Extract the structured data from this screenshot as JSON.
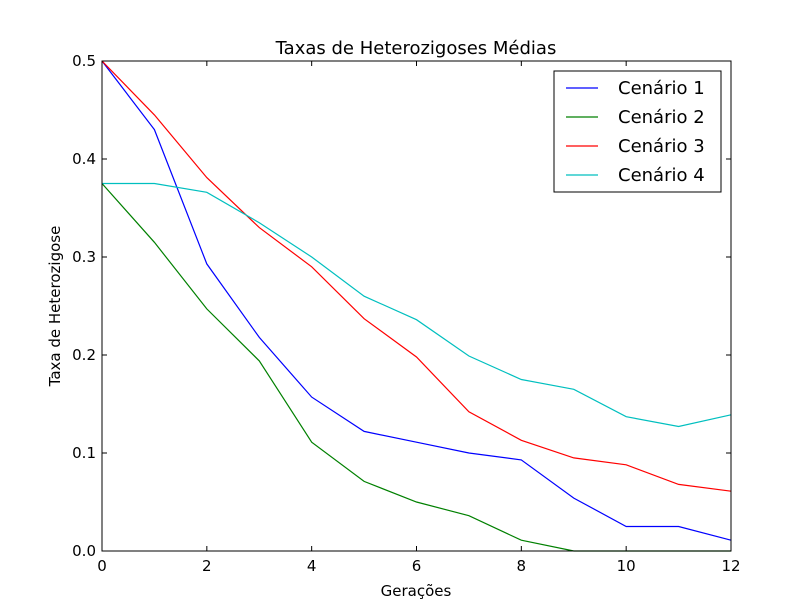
{
  "chart_data": {
    "type": "line",
    "title": "Taxas de Heterozigoses Médias",
    "xlabel": "Gerações",
    "ylabel": "Taxa de Heterozigose",
    "xlim": [
      0,
      12
    ],
    "ylim": [
      0,
      0.5
    ],
    "xticks": [
      0,
      2,
      4,
      6,
      8,
      10,
      12
    ],
    "yticks": [
      0.0,
      0.1,
      0.2,
      0.3,
      0.4,
      0.5
    ],
    "xtick_labels": [
      "0",
      "2",
      "4",
      "6",
      "8",
      "10",
      "12"
    ],
    "ytick_labels": [
      "0.0",
      "0.1",
      "0.2",
      "0.3",
      "0.4",
      "0.5"
    ],
    "legend_position": "top-right",
    "grid": false,
    "x": [
      0,
      1,
      2,
      3,
      4,
      5,
      6,
      7,
      8,
      9,
      10,
      11,
      12
    ],
    "series": [
      {
        "name": "Cenário 1",
        "color": "#0000ff",
        "values": [
          0.5,
          0.43,
          0.293,
          0.218,
          0.157,
          0.122,
          0.111,
          0.1,
          0.093,
          0.054,
          0.025,
          0.025,
          0.011
        ]
      },
      {
        "name": "Cenário 2",
        "color": "#008000",
        "values": [
          0.375,
          0.315,
          0.247,
          0.194,
          0.111,
          0.071,
          0.05,
          0.036,
          0.011,
          0.0,
          0.0,
          0.0,
          0.0
        ]
      },
      {
        "name": "Cenário 3",
        "color": "#ff0000",
        "values": [
          0.5,
          0.445,
          0.381,
          0.33,
          0.29,
          0.237,
          0.198,
          0.142,
          0.113,
          0.095,
          0.088,
          0.068,
          0.061
        ]
      },
      {
        "name": "Cenário 4",
        "color": "#00bfbf",
        "values": [
          0.375,
          0.375,
          0.366,
          0.335,
          0.3,
          0.26,
          0.236,
          0.199,
          0.175,
          0.165,
          0.137,
          0.127,
          0.139
        ]
      }
    ]
  }
}
